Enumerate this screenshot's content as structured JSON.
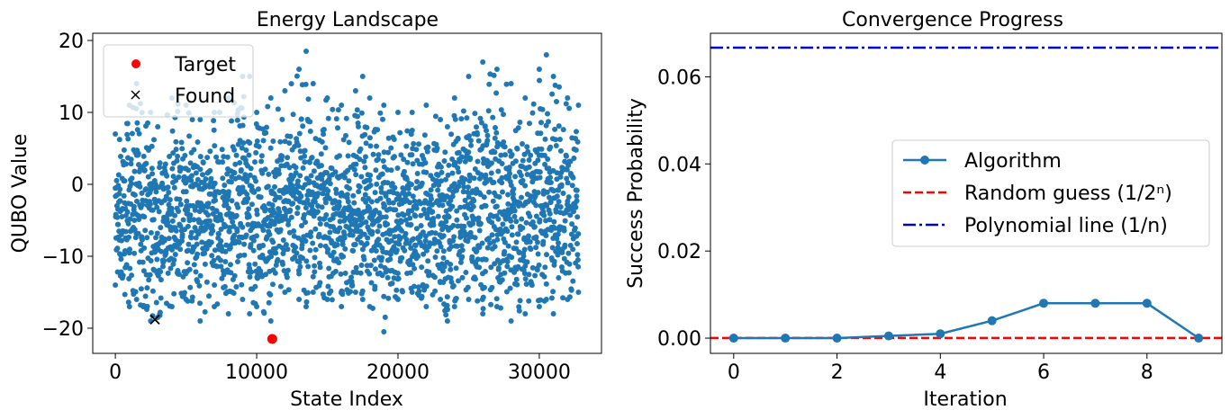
{
  "colors": {
    "scatter": "#1f77b4",
    "target": "#ff0000",
    "found": "#000000",
    "algorithm": "#1f77b4",
    "random": "#ff0000",
    "polynomial": "#0000cc"
  },
  "chart_data": [
    {
      "type": "scatter",
      "title": "Energy Landscape",
      "xlabel": "State Index",
      "ylabel": "QUBO Value",
      "xlim": [
        -1600,
        34400
      ],
      "ylim": [
        -23.5,
        21.0
      ],
      "xticks": [
        0,
        10000,
        20000,
        30000
      ],
      "xtick_labels": [
        "0",
        "10000",
        "20000",
        "30000"
      ],
      "yticks": [
        -20,
        -10,
        0,
        10,
        20
      ],
      "ytick_labels": [
        "−20",
        "−10",
        "0",
        "10",
        "20"
      ],
      "grid": false,
      "legend_position": "upper-left",
      "state_count": 32768,
      "envelope": {
        "x": [
          0,
          1000,
          1500,
          2500,
          3000,
          4000,
          5000,
          6000,
          7000,
          8000,
          9000,
          9500,
          10000,
          11000,
          12000,
          13000,
          13500,
          14000,
          15000,
          16000,
          17000,
          17500,
          18000,
          19000,
          20000,
          21000,
          22000,
          23000,
          23500,
          24000,
          25000,
          26000,
          27000,
          28000,
          29000,
          30000,
          30500,
          31000,
          32000,
          32767
        ],
        "max": [
          7,
          11,
          14,
          10,
          8,
          12,
          11,
          9,
          10,
          12,
          15,
          15,
          10,
          12,
          13,
          16,
          18.5,
          14,
          12,
          11,
          13,
          15,
          12,
          11,
          10,
          10,
          11,
          9,
          8,
          12,
          15,
          17,
          16,
          14,
          12,
          16,
          18,
          15,
          12,
          11
        ],
        "min": [
          -14,
          -17,
          -16,
          -19,
          -18.5,
          -17,
          -16,
          -19,
          -17,
          -18,
          -16,
          -18,
          -17,
          -19,
          -15,
          -16,
          -17,
          -15,
          -16,
          -17,
          -15,
          -16,
          -17,
          -20.5,
          -16,
          -15,
          -17,
          -16,
          -19,
          -17,
          -16,
          -18,
          -17,
          -19,
          -18,
          -17,
          -16,
          -18,
          -16,
          -15
        ]
      },
      "series": [
        {
          "name": "Target",
          "marker": "circle",
          "points": [
            [
              11100,
              -21.5
            ]
          ]
        },
        {
          "name": "Found",
          "marker": "x",
          "points": [
            [
              2800,
              -18.8
            ]
          ]
        }
      ]
    },
    {
      "type": "line",
      "title": "Convergence Progress",
      "xlabel": "Iteration",
      "ylabel": "Success Probability",
      "xlim": [
        -0.45,
        9.45
      ],
      "ylim": [
        -0.0035,
        0.07
      ],
      "xticks": [
        0,
        2,
        4,
        6,
        8
      ],
      "xtick_labels": [
        "0",
        "2",
        "4",
        "6",
        "8"
      ],
      "yticks": [
        0.0,
        0.02,
        0.04,
        0.06
      ],
      "ytick_labels": [
        "0.00",
        "0.02",
        "0.04",
        "0.06"
      ],
      "grid": false,
      "legend_position": "center-right",
      "series": [
        {
          "name": "Algorithm",
          "style": "solid-marker",
          "x": [
            0,
            1,
            2,
            3,
            4,
            5,
            6,
            7,
            8,
            9
          ],
          "values": [
            0.0,
            0.0,
            0.0,
            0.0005,
            0.001,
            0.004,
            0.008,
            0.008,
            0.008,
            0.0
          ]
        },
        {
          "name": "Random guess (1/2ⁿ)",
          "style": "dashed",
          "hline": 3.05e-05
        },
        {
          "name": "Polynomial line (1/n)",
          "style": "dashdot",
          "hline": 0.0667
        }
      ]
    }
  ]
}
